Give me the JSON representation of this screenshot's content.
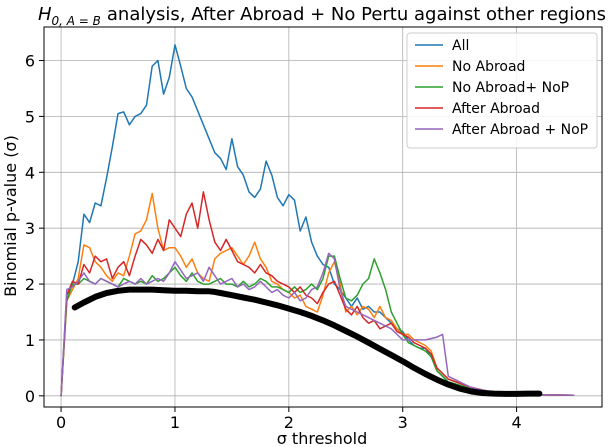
{
  "chart_data": {
    "type": "line",
    "title": "analysis, After Abroad + No Pertu against other regions",
    "title_math": {
      "base": "H",
      "subscript": "0, A = B"
    },
    "xlabel": "σ threshold",
    "ylabel": "Binomial p-value (σ)",
    "xlim": [
      -0.15,
      4.75
    ],
    "ylim": [
      -0.2,
      6.6
    ],
    "xticks": [
      0,
      1,
      2,
      3,
      4
    ],
    "yticks": [
      0,
      1,
      2,
      3,
      4,
      5,
      6
    ],
    "grid": true,
    "legend_position": "top-right",
    "series": [
      {
        "name": "All",
        "color": "#1f77b4",
        "x": [
          0.0,
          0.05,
          0.1,
          0.15,
          0.2,
          0.25,
          0.3,
          0.35,
          0.4,
          0.45,
          0.5,
          0.55,
          0.6,
          0.65,
          0.7,
          0.75,
          0.8,
          0.85,
          0.9,
          0.95,
          1.0,
          1.05,
          1.1,
          1.15,
          1.2,
          1.25,
          1.3,
          1.35,
          1.4,
          1.45,
          1.5,
          1.55,
          1.6,
          1.65,
          1.7,
          1.75,
          1.8,
          1.85,
          1.9,
          1.95,
          2.0,
          2.05,
          2.1,
          2.15,
          2.2,
          2.25,
          2.3,
          2.35,
          2.4,
          2.45,
          2.5,
          2.55,
          2.6,
          2.65,
          2.7,
          2.75,
          2.8,
          2.85,
          2.9,
          2.95,
          3.0,
          3.05,
          3.1,
          3.15,
          3.2,
          3.25,
          3.3,
          3.4,
          3.6,
          3.8,
          4.0,
          4.2,
          4.5
        ],
        "y": [
          0.0,
          1.8,
          2.0,
          2.4,
          3.25,
          3.1,
          3.45,
          3.4,
          3.9,
          4.45,
          5.05,
          5.08,
          4.85,
          5.0,
          5.05,
          5.2,
          5.9,
          6.0,
          5.4,
          5.7,
          6.28,
          5.9,
          5.5,
          5.35,
          5.1,
          4.85,
          4.6,
          4.35,
          4.25,
          4.05,
          4.6,
          4.1,
          3.95,
          3.65,
          3.55,
          3.7,
          4.2,
          3.95,
          3.55,
          3.4,
          3.6,
          3.5,
          2.95,
          3.2,
          2.75,
          2.5,
          2.35,
          2.3,
          2.0,
          1.9,
          1.75,
          1.6,
          1.75,
          1.55,
          1.6,
          1.5,
          1.5,
          1.4,
          1.3,
          1.2,
          1.15,
          1.0,
          0.9,
          0.85,
          0.85,
          0.7,
          0.45,
          0.25,
          0.13,
          0.06,
          0.03,
          0.02,
          0.01
        ]
      },
      {
        "name": "No Abroad",
        "color": "#ff7f0e",
        "x": [
          0.0,
          0.05,
          0.1,
          0.15,
          0.2,
          0.25,
          0.3,
          0.35,
          0.4,
          0.45,
          0.5,
          0.55,
          0.6,
          0.65,
          0.7,
          0.75,
          0.8,
          0.85,
          0.9,
          0.95,
          1.0,
          1.05,
          1.1,
          1.15,
          1.2,
          1.25,
          1.3,
          1.35,
          1.4,
          1.45,
          1.5,
          1.55,
          1.6,
          1.65,
          1.7,
          1.75,
          1.8,
          1.85,
          1.9,
          1.95,
          2.0,
          2.05,
          2.1,
          2.15,
          2.2,
          2.25,
          2.3,
          2.35,
          2.4,
          2.45,
          2.5,
          2.55,
          2.6,
          2.65,
          2.7,
          2.75,
          2.8,
          2.85,
          2.9,
          2.95,
          3.0,
          3.05,
          3.1,
          3.15,
          3.2,
          3.25,
          3.3,
          3.4,
          3.6,
          3.8,
          4.0,
          4.2,
          4.5
        ],
        "y": [
          0.0,
          1.7,
          1.9,
          2.1,
          2.7,
          2.65,
          2.4,
          2.3,
          2.15,
          2.05,
          2.2,
          2.15,
          2.5,
          2.9,
          2.95,
          3.15,
          3.62,
          3.0,
          2.6,
          2.65,
          2.65,
          2.5,
          2.3,
          2.45,
          2.2,
          2.1,
          2.05,
          2.45,
          2.55,
          2.6,
          2.65,
          2.5,
          2.35,
          2.5,
          2.75,
          2.45,
          2.3,
          2.05,
          2.0,
          1.9,
          1.85,
          1.75,
          1.8,
          1.6,
          1.55,
          1.5,
          1.8,
          2.2,
          2.4,
          2.0,
          1.5,
          1.6,
          1.45,
          1.6,
          1.55,
          1.4,
          1.6,
          1.4,
          1.35,
          1.2,
          1.1,
          1.1,
          1.0,
          0.95,
          0.9,
          0.8,
          0.5,
          0.3,
          0.15,
          0.06,
          0.03,
          0.02,
          0.01
        ]
      },
      {
        "name": "No Abroad+ NoP",
        "color": "#2ca02c",
        "x": [
          0.0,
          0.05,
          0.1,
          0.15,
          0.2,
          0.25,
          0.3,
          0.35,
          0.4,
          0.45,
          0.5,
          0.55,
          0.6,
          0.65,
          0.7,
          0.75,
          0.8,
          0.85,
          0.9,
          0.95,
          1.0,
          1.05,
          1.1,
          1.15,
          1.2,
          1.25,
          1.3,
          1.35,
          1.4,
          1.45,
          1.5,
          1.55,
          1.6,
          1.65,
          1.7,
          1.75,
          1.8,
          1.85,
          1.9,
          1.95,
          2.0,
          2.05,
          2.1,
          2.15,
          2.2,
          2.25,
          2.3,
          2.35,
          2.4,
          2.45,
          2.5,
          2.55,
          2.6,
          2.65,
          2.7,
          2.75,
          2.8,
          2.85,
          2.9,
          2.95,
          3.0,
          3.05,
          3.1,
          3.15,
          3.2,
          3.25,
          3.3,
          3.4,
          3.6,
          3.8,
          4.0,
          4.2,
          4.5
        ],
        "y": [
          0.0,
          1.7,
          2.0,
          2.0,
          2.1,
          2.05,
          2.0,
          2.1,
          2.05,
          2.0,
          1.95,
          2.1,
          2.05,
          2.0,
          2.05,
          2.0,
          2.15,
          2.05,
          2.1,
          2.2,
          2.3,
          2.15,
          2.05,
          2.2,
          2.05,
          2.0,
          2.0,
          2.05,
          2.1,
          2.0,
          2.0,
          1.95,
          2.05,
          1.95,
          2.0,
          2.1,
          2.05,
          1.95,
          1.95,
          1.9,
          1.85,
          1.95,
          1.85,
          1.9,
          2.0,
          1.9,
          2.1,
          2.5,
          2.5,
          2.1,
          1.75,
          1.7,
          1.8,
          2.0,
          2.1,
          2.45,
          2.2,
          1.9,
          1.5,
          1.3,
          1.1,
          0.95,
          0.9,
          0.85,
          0.8,
          0.7,
          0.45,
          0.25,
          0.13,
          0.06,
          0.03,
          0.02,
          0.01
        ]
      },
      {
        "name": "After Abroad",
        "color": "#d62728",
        "x": [
          0.0,
          0.05,
          0.1,
          0.15,
          0.2,
          0.25,
          0.3,
          0.35,
          0.4,
          0.45,
          0.5,
          0.55,
          0.6,
          0.65,
          0.7,
          0.75,
          0.8,
          0.85,
          0.9,
          0.95,
          1.0,
          1.05,
          1.1,
          1.15,
          1.2,
          1.25,
          1.3,
          1.35,
          1.4,
          1.45,
          1.5,
          1.55,
          1.6,
          1.65,
          1.7,
          1.75,
          1.8,
          1.85,
          1.9,
          1.95,
          2.0,
          2.05,
          2.1,
          2.15,
          2.2,
          2.25,
          2.3,
          2.35,
          2.4,
          2.45,
          2.5,
          2.55,
          2.6,
          2.65,
          2.7,
          2.75,
          2.8,
          2.85,
          2.9,
          2.95,
          3.0,
          3.05,
          3.1,
          3.15,
          3.2,
          3.25,
          3.3,
          3.4,
          3.6,
          3.8,
          4.0,
          4.2,
          4.5
        ],
        "y": [
          0.0,
          1.8,
          2.05,
          2.0,
          2.35,
          2.2,
          2.5,
          2.4,
          2.45,
          2.1,
          2.3,
          2.4,
          2.15,
          2.5,
          2.8,
          2.7,
          2.55,
          2.8,
          2.6,
          3.15,
          3.0,
          2.85,
          3.25,
          3.45,
          3.0,
          3.65,
          3.15,
          2.75,
          2.6,
          2.8,
          2.6,
          2.4,
          2.35,
          2.3,
          2.2,
          2.35,
          2.2,
          2.15,
          2.05,
          2.0,
          1.95,
          1.85,
          1.95,
          1.8,
          1.75,
          1.65,
          1.85,
          2.0,
          2.05,
          1.8,
          1.55,
          1.45,
          1.6,
          1.4,
          1.3,
          1.35,
          1.2,
          1.25,
          1.3,
          1.15,
          1.1,
          1.05,
          0.95,
          0.9,
          0.85,
          0.75,
          0.5,
          0.3,
          0.15,
          0.06,
          0.03,
          0.02,
          0.01
        ]
      },
      {
        "name": "After Abroad + NoP",
        "color": "#9467bd",
        "x": [
          0.0,
          0.05,
          0.1,
          0.15,
          0.2,
          0.25,
          0.3,
          0.35,
          0.4,
          0.45,
          0.5,
          0.55,
          0.6,
          0.65,
          0.7,
          0.75,
          0.8,
          0.85,
          0.9,
          0.95,
          1.0,
          1.05,
          1.1,
          1.15,
          1.2,
          1.25,
          1.3,
          1.35,
          1.4,
          1.45,
          1.5,
          1.55,
          1.6,
          1.65,
          1.7,
          1.75,
          1.8,
          1.85,
          1.9,
          1.95,
          2.0,
          2.05,
          2.1,
          2.15,
          2.2,
          2.25,
          2.3,
          2.35,
          2.4,
          2.45,
          2.5,
          2.55,
          2.6,
          2.65,
          2.7,
          2.75,
          2.8,
          2.85,
          2.9,
          2.95,
          3.0,
          3.1,
          3.2,
          3.3,
          3.35,
          3.4,
          3.6,
          3.8,
          4.0,
          4.2,
          4.5
        ],
        "y": [
          0.0,
          1.9,
          1.95,
          2.05,
          2.2,
          2.05,
          2.0,
          2.1,
          2.05,
          2.0,
          1.95,
          2.0,
          2.05,
          2.0,
          2.1,
          2.0,
          2.05,
          2.1,
          2.05,
          2.2,
          2.4,
          2.25,
          2.1,
          2.15,
          2.2,
          2.05,
          2.3,
          2.15,
          2.0,
          2.05,
          2.1,
          1.95,
          2.0,
          1.9,
          1.95,
          2.05,
          1.95,
          1.85,
          1.9,
          1.8,
          1.75,
          1.85,
          1.7,
          1.75,
          1.9,
          1.95,
          2.2,
          2.55,
          2.45,
          1.9,
          1.6,
          1.55,
          1.5,
          1.45,
          1.4,
          1.35,
          1.3,
          1.25,
          1.2,
          1.1,
          1.0,
          1.0,
          1.0,
          1.05,
          1.1,
          0.35,
          0.15,
          0.06,
          0.03,
          0.02,
          0.01
        ]
      },
      {
        "name": "",
        "color": "#000000",
        "width": 6,
        "x": [
          0.12,
          0.2,
          0.3,
          0.4,
          0.5,
          0.6,
          0.7,
          0.8,
          0.9,
          1.0,
          1.1,
          1.2,
          1.3,
          1.35,
          1.4,
          1.5,
          1.6,
          1.7,
          1.8,
          1.9,
          2.0,
          2.1,
          2.2,
          2.3,
          2.4,
          2.5,
          2.6,
          2.7,
          2.8,
          2.9,
          3.0,
          3.1,
          3.2,
          3.3,
          3.4,
          3.5,
          3.6,
          3.7,
          3.8,
          3.9,
          4.0,
          4.1,
          4.2
        ],
        "y": [
          1.58,
          1.67,
          1.77,
          1.84,
          1.88,
          1.9,
          1.9,
          1.9,
          1.89,
          1.88,
          1.88,
          1.87,
          1.87,
          1.86,
          1.84,
          1.8,
          1.76,
          1.72,
          1.67,
          1.62,
          1.56,
          1.5,
          1.43,
          1.35,
          1.26,
          1.16,
          1.06,
          0.95,
          0.84,
          0.73,
          0.62,
          0.5,
          0.39,
          0.29,
          0.2,
          0.13,
          0.08,
          0.05,
          0.04,
          0.035,
          0.035,
          0.04,
          0.04
        ]
      }
    ]
  }
}
